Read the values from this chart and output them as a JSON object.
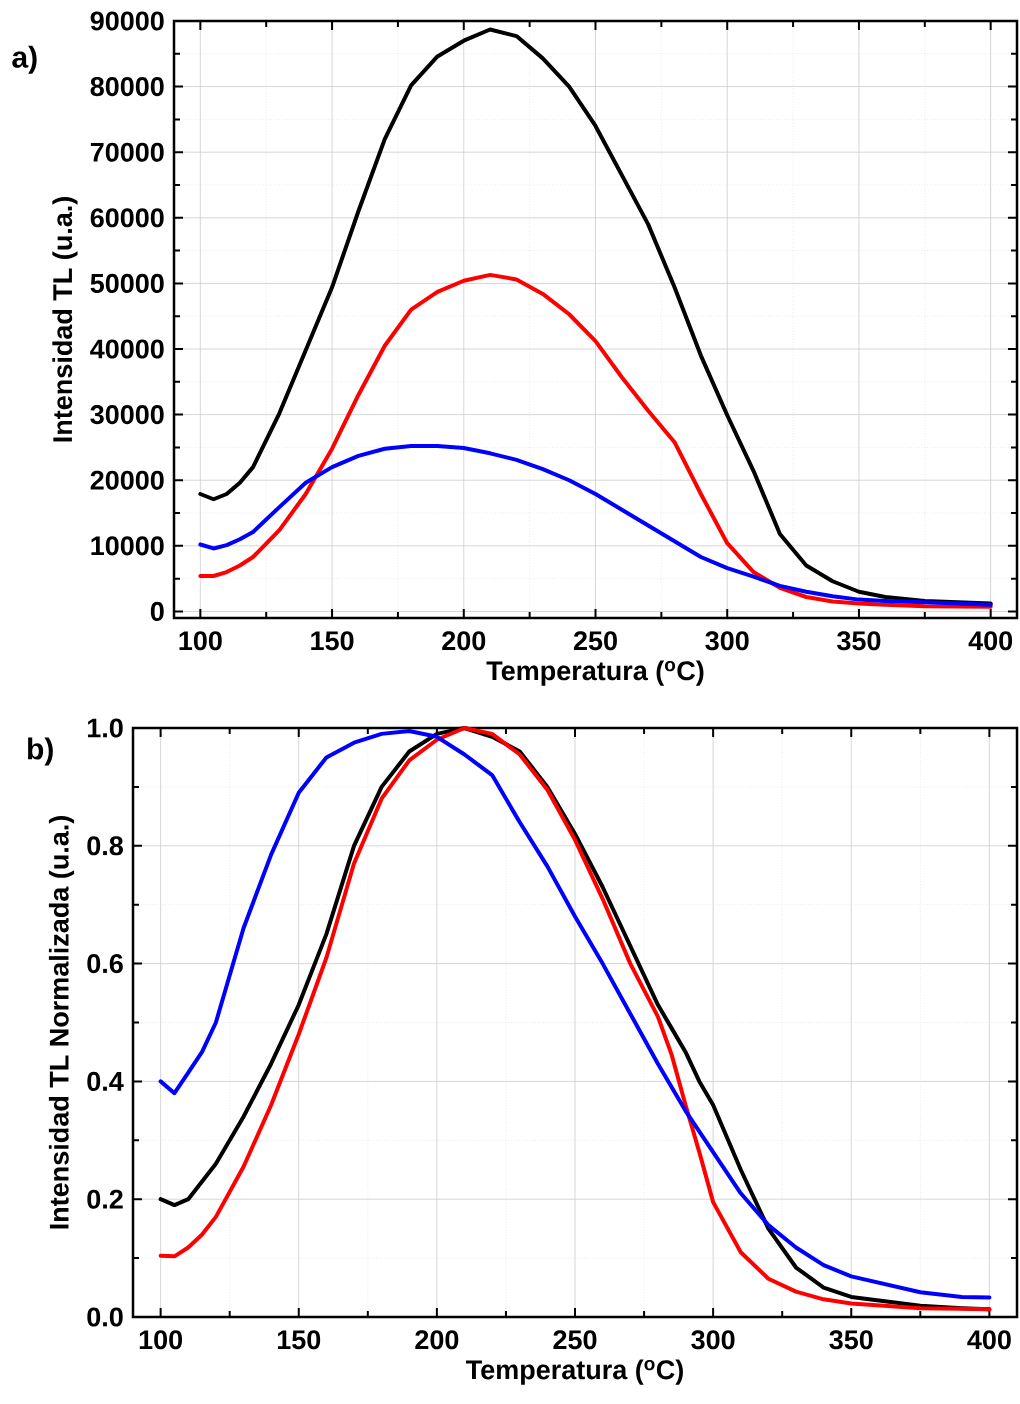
{
  "chart_data": [
    {
      "type": "line",
      "title": "a)",
      "xlabel": "Temperatura ($^{o}$C)",
      "ylabel": "Intensidad TL (u.a.)",
      "grid": true,
      "xlim": [
        90,
        410
      ],
      "ylim": [
        -1000,
        90000
      ],
      "xticks": [
        100,
        {
          "value": 125,
          "label": null
        },
        150,
        {
          "value": 175,
          "label": null
        },
        200,
        {
          "value": 225,
          "label": null
        },
        250,
        {
          "value": 275,
          "label": null
        },
        300,
        {
          "value": 325,
          "label": null
        },
        350,
        {
          "value": 375,
          "label": null
        },
        400
      ],
      "yticks": [
        0,
        {
          "value": 5000,
          "label": null
        },
        10000,
        {
          "value": 15000,
          "label": null
        },
        20000,
        {
          "value": 25000,
          "label": null
        },
        30000,
        {
          "value": 35000,
          "label": null
        },
        40000,
        {
          "value": 45000,
          "label": null
        },
        50000,
        {
          "value": 55000,
          "label": null
        },
        60000,
        {
          "value": 65000,
          "label": null
        },
        70000,
        {
          "value": 75000,
          "label": null
        },
        80000,
        {
          "value": 85000,
          "label": null
        },
        90000
      ],
      "x": [
        100,
        105,
        110,
        115,
        120,
        130,
        140,
        150,
        160,
        170,
        180,
        190,
        200,
        210,
        220,
        230,
        240,
        250,
        260,
        270,
        280,
        290,
        300,
        310,
        320,
        330,
        340,
        350,
        360,
        375,
        400
      ],
      "series": [
        {
          "color": "#000000",
          "values": [
            17900,
            17100,
            17900,
            19600,
            22000,
            30200,
            39800,
            49400,
            61000,
            72000,
            80200,
            84600,
            87000,
            88700,
            87700,
            84300,
            80000,
            74000,
            66500,
            59000,
            49400,
            39000,
            29900,
            21400,
            11800,
            7000,
            4600,
            3000,
            2200,
            1600,
            1200
          ]
        },
        {
          "color": "#ff0000",
          "values": [
            5400,
            5400,
            6000,
            7000,
            8300,
            12400,
            17900,
            24800,
            33000,
            40500,
            46000,
            48700,
            50400,
            51300,
            50600,
            48400,
            45300,
            41200,
            35700,
            30600,
            25800,
            17900,
            10400,
            6000,
            3600,
            2200,
            1500,
            1200,
            1000,
            800,
            700
          ]
        },
        {
          "color": "#0000ff",
          "values": [
            10200,
            9600,
            10100,
            11000,
            12100,
            15900,
            19600,
            22000,
            23700,
            24800,
            25200,
            25200,
            24900,
            24100,
            23100,
            21700,
            20000,
            17900,
            15500,
            13100,
            10700,
            8300,
            6600,
            5300,
            3900,
            3000,
            2300,
            1800,
            1600,
            1400,
            1000
          ]
        }
      ]
    },
    {
      "type": "line",
      "title": "b)",
      "xlabel": "Temperatura ($^{o}$C)",
      "ylabel": "Intensidad TL Normalizada (u.a.)",
      "grid": true,
      "xlim": [
        90,
        410
      ],
      "ylim": [
        0,
        1
      ],
      "xticks": [
        100,
        {
          "value": 125,
          "label": null
        },
        150,
        {
          "value": 175,
          "label": null
        },
        200,
        {
          "value": 225,
          "label": null
        },
        250,
        {
          "value": 275,
          "label": null
        },
        300,
        {
          "value": 325,
          "label": null
        },
        350,
        {
          "value": 375,
          "label": null
        },
        400
      ],
      "yticks": [
        {
          "value": 0,
          "label": "0.0"
        },
        {
          "value": 0.1,
          "label": null
        },
        {
          "value": 0.2,
          "label": "0.2"
        },
        {
          "value": 0.3,
          "label": null
        },
        {
          "value": 0.4,
          "label": "0.4"
        },
        {
          "value": 0.5,
          "label": null
        },
        {
          "value": 0.6,
          "label": "0.6"
        },
        {
          "value": 0.7,
          "label": null
        },
        {
          "value": 0.8,
          "label": "0.8"
        },
        {
          "value": 0.9,
          "label": null
        },
        {
          "value": 1,
          "label": "1.0"
        }
      ],
      "x": [
        100,
        105,
        110,
        115,
        120,
        130,
        140,
        150,
        160,
        170,
        180,
        190,
        200,
        210,
        220,
        230,
        240,
        250,
        260,
        270,
        280,
        285,
        290,
        295,
        300,
        310,
        320,
        330,
        340,
        350,
        375,
        390,
        400
      ],
      "series": [
        {
          "color": "#000000",
          "values": [
            0.2,
            0.19,
            0.2,
            0.23,
            0.26,
            0.34,
            0.43,
            0.53,
            0.65,
            0.8,
            0.9,
            0.96,
            0.99,
            1.0,
            0.985,
            0.96,
            0.9,
            0.82,
            0.73,
            0.63,
            0.53,
            0.49,
            0.45,
            0.4,
            0.36,
            0.25,
            0.15,
            0.084,
            0.05,
            0.034,
            0.019,
            0.015,
            0.013
          ]
        },
        {
          "color": "#ff0000",
          "values": [
            0.104,
            0.103,
            0.118,
            0.14,
            0.17,
            0.255,
            0.36,
            0.48,
            0.61,
            0.77,
            0.88,
            0.945,
            0.98,
            1.0,
            0.99,
            0.955,
            0.895,
            0.81,
            0.71,
            0.6,
            0.51,
            0.445,
            0.36,
            0.28,
            0.195,
            0.11,
            0.065,
            0.043,
            0.03,
            0.023,
            0.015,
            0.014,
            0.013
          ]
        },
        {
          "color": "#0000ff",
          "values": [
            0.4,
            0.38,
            0.415,
            0.45,
            0.5,
            0.66,
            0.785,
            0.89,
            0.95,
            0.975,
            0.99,
            0.995,
            0.985,
            0.955,
            0.92,
            0.84,
            0.765,
            0.68,
            0.6,
            0.515,
            0.43,
            0.39,
            0.35,
            0.315,
            0.28,
            0.21,
            0.156,
            0.118,
            0.088,
            0.069,
            0.042,
            0.034,
            0.033
          ]
        }
      ]
    }
  ]
}
